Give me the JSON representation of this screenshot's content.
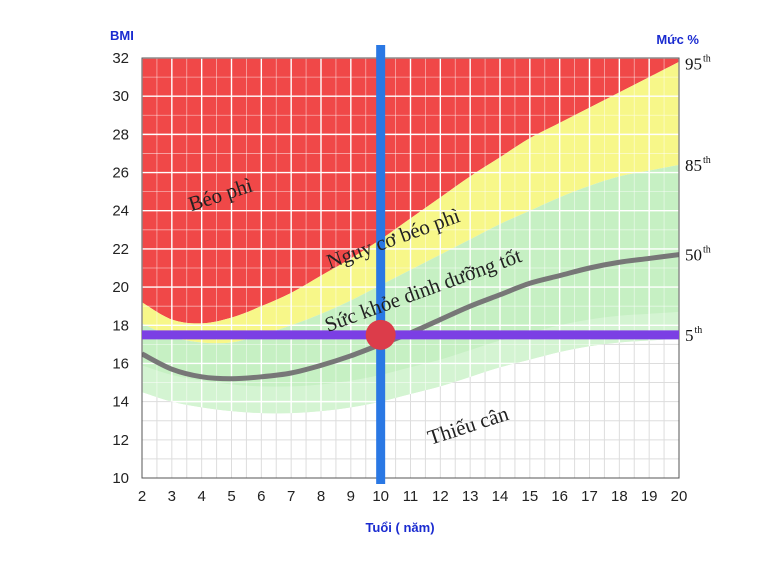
{
  "chart_data": {
    "type": "area",
    "ylabel": "BMI",
    "right_label": "Mức %",
    "xlabel": "Tuổi ( năm)",
    "xlim": [
      2,
      20
    ],
    "ylim": [
      10,
      32
    ],
    "x_ticks": [
      2,
      3,
      4,
      5,
      6,
      7,
      8,
      9,
      10,
      11,
      12,
      13,
      14,
      15,
      16,
      17,
      18,
      19,
      20
    ],
    "y_ticks": [
      10,
      12,
      14,
      16,
      18,
      20,
      22,
      24,
      26,
      28,
      30,
      32
    ],
    "grid": true,
    "colors": {
      "obese": "#f04848",
      "overweight": "#f7f789",
      "healthy": "#c6f0c3",
      "healthy_light": "#def7dc",
      "underweight": "#ffffff",
      "median_line": "#777777",
      "marker_lines": "#7b3fe4",
      "vertical_line": "#2a78e4",
      "point": "#dc3c4a"
    },
    "percentile_labels": [
      {
        "base": "95",
        "sup": "th",
        "y": 31.7
      },
      {
        "base": "85",
        "sup": "th",
        "y": 26.4
      },
      {
        "base": "50",
        "sup": "th",
        "y": 21.7
      },
      {
        "base": "5",
        "sup": "th",
        "y": 17.5
      }
    ],
    "series": [
      {
        "name": "95th",
        "x": [
          2,
          3,
          4,
          5,
          6,
          7,
          8,
          9,
          10,
          11,
          12,
          13,
          14,
          15,
          16,
          17,
          18,
          19,
          20
        ],
        "values": [
          19.2,
          18.3,
          18.1,
          18.4,
          19.0,
          19.7,
          20.6,
          21.5,
          22.5,
          23.6,
          24.7,
          25.8,
          26.8,
          27.8,
          28.6,
          29.4,
          30.2,
          31.0,
          31.8
        ]
      },
      {
        "name": "85th",
        "x": [
          2,
          3,
          4,
          5,
          6,
          7,
          8,
          9,
          10,
          11,
          12,
          13,
          14,
          15,
          16,
          17,
          18,
          19,
          20
        ],
        "values": [
          18.1,
          17.4,
          17.1,
          17.1,
          17.5,
          18.0,
          18.6,
          19.3,
          20.1,
          20.9,
          21.7,
          22.5,
          23.3,
          24.0,
          24.7,
          25.3,
          25.8,
          26.1,
          26.4
        ]
      },
      {
        "name": "50th",
        "x": [
          2,
          3,
          4,
          5,
          6,
          7,
          8,
          9,
          10,
          11,
          12,
          13,
          14,
          15,
          16,
          17,
          18,
          19,
          20
        ],
        "values": [
          16.5,
          15.7,
          15.3,
          15.2,
          15.3,
          15.5,
          15.9,
          16.4,
          17.0,
          17.6,
          18.3,
          19.0,
          19.6,
          20.2,
          20.6,
          21.0,
          21.3,
          21.5,
          21.7
        ]
      },
      {
        "name": "5th",
        "x": [
          2,
          3,
          4,
          5,
          6,
          7,
          8,
          9,
          10,
          11,
          12,
          13,
          14,
          15,
          16,
          17,
          18,
          19,
          20
        ],
        "values": [
          14.5,
          14.0,
          13.7,
          13.5,
          13.4,
          13.4,
          13.5,
          13.7,
          14.0,
          14.4,
          14.8,
          15.3,
          15.8,
          16.2,
          16.6,
          16.9,
          17.1,
          17.2,
          17.3
        ]
      }
    ],
    "reference_lines": [
      {
        "orientation": "horizontal",
        "value": 17.5
      },
      {
        "orientation": "vertical",
        "value": 10
      }
    ],
    "highlight_point": {
      "x": 10,
      "y": 17.5
    },
    "zone_labels": [
      {
        "text": "Béo phì",
        "x": 4.7,
        "y": 24.5,
        "angle": -18
      },
      {
        "text": "Nguy cơ béo phì",
        "x": 10.5,
        "y": 22.2,
        "angle": -20
      },
      {
        "text": "Sức khỏe dinh dưỡng tốt",
        "x": 11.5,
        "y": 19.5,
        "angle": -20
      },
      {
        "text": "Thiếu cân",
        "x": 13,
        "y": 12.4,
        "angle": -18
      }
    ]
  }
}
